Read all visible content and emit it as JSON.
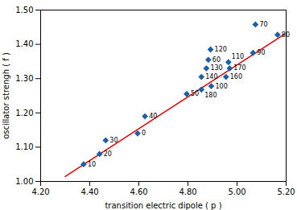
{
  "chart_data": {
    "type": "scatter",
    "xlabel": "transition electric dipole ( p )",
    "ylabel": "oscillator strengh ( f )",
    "xlim": [
      4.2,
      5.2
    ],
    "ylim": [
      1.0,
      1.5
    ],
    "xticks": [
      {
        "value": 4.2,
        "label": "4.20"
      },
      {
        "value": 4.4,
        "label": "4.40"
      },
      {
        "value": 4.6,
        "label": "4.60"
      },
      {
        "value": 4.8,
        "label": "4.80"
      },
      {
        "value": 5.0,
        "label": "5.00"
      },
      {
        "value": 5.2,
        "label": "5.20"
      }
    ],
    "yticks": [
      {
        "value": 1.0,
        "label": "1.00"
      },
      {
        "value": 1.1,
        "label": "1.10"
      },
      {
        "value": 1.2,
        "label": "1.20"
      },
      {
        "value": 1.3,
        "label": "1.30"
      },
      {
        "value": 1.4,
        "label": "1.40"
      },
      {
        "value": 1.5,
        "label": "1.50"
      }
    ],
    "grid": false,
    "series": [
      {
        "type": "line",
        "color": "#dd0000",
        "line_style": "solid",
        "x": [
          4.3,
          5.195
        ],
        "values": [
          1.0145,
          1.430675
        ]
      },
      {
        "type": "scatter",
        "color": "#1a5fa8",
        "marker": "diamond",
        "labels": [
          "10",
          "20",
          "30",
          "0",
          "40",
          "50",
          "180",
          "100",
          "140",
          "130",
          "160",
          "60",
          "120",
          "110",
          "170",
          "90",
          "70",
          "80"
        ],
        "x": [
          4.375,
          4.44,
          4.465,
          4.595,
          4.625,
          4.795,
          4.855,
          4.895,
          4.855,
          4.875,
          4.955,
          4.883,
          4.892,
          4.965,
          4.97,
          5.065,
          5.075,
          5.165
        ],
        "values": [
          1.05,
          1.08,
          1.12,
          1.14,
          1.19,
          1.255,
          1.268,
          1.278,
          1.305,
          1.33,
          1.305,
          1.355,
          1.385,
          1.348,
          1.33,
          1.375,
          1.458,
          1.428
        ]
      }
    ]
  }
}
